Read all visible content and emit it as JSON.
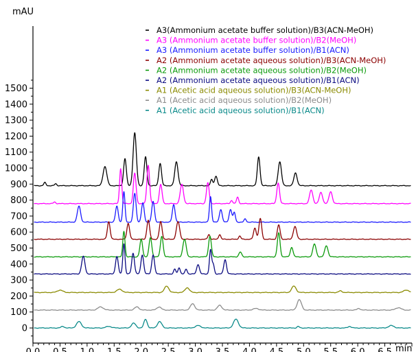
{
  "chart_data": {
    "type": "line",
    "title": "",
    "ylabel": "mAU",
    "xlabel": "min",
    "xlim": [
      0.0,
      7.0
    ],
    "ylim": [
      -50,
      1600
    ],
    "x_ticks": [
      "0.0",
      "0.5",
      "1.0",
      "1.5",
      "2.0",
      "2.5",
      "3.0",
      "3.5",
      "4.0",
      "4.5",
      "5.0",
      "5.5",
      "6.0",
      "6.5"
    ],
    "y_ticks": [
      "0",
      "100",
      "200",
      "300",
      "400",
      "500",
      "600",
      "700",
      "800",
      "900",
      "1000",
      "1100",
      "1200",
      "1300",
      "1400",
      "1500"
    ],
    "grid": false,
    "legend_position": "top-right",
    "series": [
      {
        "name": "A3(Ammonium acetate buffer solution)/B3(ACN-MeOH)",
        "color": "#000000",
        "baseline": 890,
        "peaks": [
          [
            0.22,
            20,
            0.02
          ],
          [
            0.42,
            12,
            0.02
          ],
          [
            1.33,
            120,
            0.035
          ],
          [
            1.7,
            170,
            0.025
          ],
          [
            1.88,
            330,
            0.03
          ],
          [
            2.08,
            180,
            0.025
          ],
          [
            2.35,
            140,
            0.025
          ],
          [
            2.65,
            150,
            0.03
          ],
          [
            3.3,
            40,
            0.02
          ],
          [
            3.38,
            60,
            0.025
          ],
          [
            4.17,
            180,
            0.025
          ],
          [
            4.56,
            150,
            0.03
          ],
          [
            4.85,
            80,
            0.03
          ]
        ]
      },
      {
        "name": "A3 (Ammonium acetate buffer solution)/B2(MeOH)",
        "color": "#ff00ff",
        "baseline": 778,
        "peaks": [
          [
            0.4,
            10,
            0.02
          ],
          [
            1.62,
            220,
            0.02
          ],
          [
            1.88,
            190,
            0.025
          ],
          [
            2.13,
            240,
            0.025
          ],
          [
            2.36,
            120,
            0.025
          ],
          [
            2.75,
            120,
            0.03
          ],
          [
            3.23,
            130,
            0.025
          ],
          [
            3.67,
            20,
            0.02
          ],
          [
            3.78,
            40,
            0.02
          ],
          [
            4.53,
            130,
            0.025
          ],
          [
            5.14,
            85,
            0.03
          ],
          [
            5.32,
            70,
            0.03
          ],
          [
            5.5,
            75,
            0.03
          ]
        ]
      },
      {
        "name": "A3 (Ammonium acetate buffer solution)/B1(ACN)",
        "color": "#1a1aff",
        "baseline": 662,
        "peaks": [
          [
            0.85,
            100,
            0.03
          ],
          [
            1.55,
            100,
            0.025
          ],
          [
            1.68,
            190,
            0.02
          ],
          [
            1.88,
            180,
            0.025
          ],
          [
            2.03,
            120,
            0.025
          ],
          [
            2.22,
            130,
            0.025
          ],
          [
            2.6,
            110,
            0.025
          ],
          [
            3.28,
            160,
            0.02
          ],
          [
            3.47,
            80,
            0.025
          ],
          [
            3.65,
            80,
            0.025
          ],
          [
            3.72,
            60,
            0.02
          ],
          [
            3.92,
            20,
            0.02
          ]
        ]
      },
      {
        "name": "A2 (Ammonium acetate aqueous solution)/B3(ACN-MeOH)",
        "color": "#8b0000",
        "baseline": 555,
        "peaks": [
          [
            1.4,
            110,
            0.025
          ],
          [
            1.76,
            100,
            0.025
          ],
          [
            2.13,
            120,
            0.025
          ],
          [
            2.36,
            110,
            0.025
          ],
          [
            2.68,
            110,
            0.03
          ],
          [
            3.25,
            30,
            0.02
          ],
          [
            3.45,
            30,
            0.02
          ],
          [
            3.82,
            20,
            0.02
          ],
          [
            4.1,
            70,
            0.025
          ],
          [
            4.2,
            130,
            0.025
          ],
          [
            4.54,
            90,
            0.025
          ],
          [
            4.84,
            80,
            0.03
          ]
        ]
      },
      {
        "name": "A2 (Ammonium acetate aqueous solution)/B2(MeOH)",
        "color": "#0a9a0a",
        "baseline": 445,
        "peaks": [
          [
            1.68,
            160,
            0.02
          ],
          [
            2.0,
            110,
            0.025
          ],
          [
            2.17,
            120,
            0.025
          ],
          [
            2.38,
            130,
            0.025
          ],
          [
            2.8,
            110,
            0.03
          ],
          [
            3.27,
            130,
            0.025
          ],
          [
            3.83,
            30,
            0.025
          ],
          [
            4.54,
            150,
            0.025
          ],
          [
            4.78,
            60,
            0.025
          ],
          [
            5.2,
            80,
            0.03
          ],
          [
            5.42,
            70,
            0.03
          ]
        ]
      },
      {
        "name": "A2 (Ammonium acetate aqueous solution)/B1(ACN)",
        "color": "#0a0a80",
        "baseline": 338,
        "peaks": [
          [
            0.93,
            110,
            0.03
          ],
          [
            1.55,
            110,
            0.025
          ],
          [
            1.68,
            190,
            0.02
          ],
          [
            1.85,
            130,
            0.025
          ],
          [
            2.02,
            120,
            0.025
          ],
          [
            2.22,
            120,
            0.025
          ],
          [
            2.62,
            30,
            0.02
          ],
          [
            2.7,
            40,
            0.02
          ],
          [
            2.83,
            30,
            0.02
          ],
          [
            3.05,
            60,
            0.025
          ],
          [
            3.28,
            150,
            0.02
          ],
          [
            3.33,
            60,
            0.02
          ],
          [
            3.55,
            90,
            0.025
          ]
        ]
      },
      {
        "name": "A1 (Acetic acid aqueous solution)/B3(ACN-MeOH)",
        "color": "#8a8a00",
        "baseline": 222,
        "peaks": [
          [
            0.5,
            15,
            0.05
          ],
          [
            1.6,
            20,
            0.05
          ],
          [
            2.47,
            40,
            0.04
          ],
          [
            2.85,
            30,
            0.04
          ],
          [
            4.82,
            40,
            0.04
          ],
          [
            5.68,
            10,
            0.03
          ],
          [
            6.9,
            15,
            0.05
          ]
        ]
      },
      {
        "name": "A1 (Acetic acid aqueous solution)/B2(MeOH)",
        "color": "#8c8c8c",
        "baseline": 112,
        "peaks": [
          [
            1.25,
            20,
            0.05
          ],
          [
            1.92,
            20,
            0.04
          ],
          [
            2.33,
            20,
            0.04
          ],
          [
            2.95,
            40,
            0.04
          ],
          [
            3.45,
            30,
            0.04
          ],
          [
            4.12,
            10,
            0.05
          ],
          [
            4.92,
            65,
            0.04
          ],
          [
            6.02,
            10,
            0.03
          ],
          [
            6.75,
            15,
            0.05
          ]
        ]
      },
      {
        "name": "A1 (Acetic acid aqueous solution)/B1(ACN)",
        "color": "#0a8a8a",
        "baseline": 0,
        "peaks": [
          [
            0.55,
            10,
            0.03
          ],
          [
            0.85,
            40,
            0.045
          ],
          [
            1.4,
            10,
            0.05
          ],
          [
            1.86,
            30,
            0.04
          ],
          [
            2.08,
            55,
            0.03
          ],
          [
            2.34,
            40,
            0.04
          ],
          [
            3.05,
            15,
            0.05
          ],
          [
            3.75,
            55,
            0.045
          ],
          [
            4.9,
            10,
            0.02
          ],
          [
            5.85,
            10,
            0.03
          ],
          [
            6.62,
            15,
            0.05
          ]
        ]
      }
    ]
  }
}
